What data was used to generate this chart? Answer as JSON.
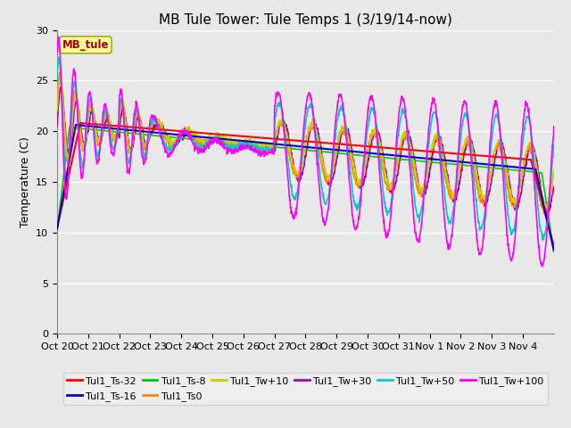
{
  "title": "MB Tule Tower: Tule Temps 1 (3/19/14-now)",
  "ylabel": "Temperature (C)",
  "ylim": [
    0,
    30
  ],
  "yticks": [
    0,
    5,
    10,
    15,
    20,
    25,
    30
  ],
  "xtick_labels": [
    "Oct 20",
    "Oct 21",
    "Oct 22",
    "Oct 23",
    "Oct 24",
    "Oct 25",
    "Oct 26",
    "Oct 27",
    "Oct 28",
    "Oct 29",
    "Oct 30",
    "Oct 31",
    "Nov 1",
    "Nov 2",
    "Nov 3",
    "Nov 4"
  ],
  "series": {
    "Tul1_Ts-32": {
      "color": "#ff0000",
      "lw": 1.5,
      "zorder": 5
    },
    "Tul1_Ts-16": {
      "color": "#0000cc",
      "lw": 1.5,
      "zorder": 5
    },
    "Tul1_Ts-8": {
      "color": "#00cc00",
      "lw": 1.2,
      "zorder": 4
    },
    "Tul1_Ts0": {
      "color": "#ff8800",
      "lw": 1.2,
      "zorder": 4
    },
    "Tul1_Tw+10": {
      "color": "#cccc00",
      "lw": 1.2,
      "zorder": 4
    },
    "Tul1_Tw+30": {
      "color": "#aa00aa",
      "lw": 1.2,
      "zorder": 3
    },
    "Tul1_Tw+50": {
      "color": "#00cccc",
      "lw": 1.2,
      "zorder": 4
    },
    "Tul1_Tw+100": {
      "color": "#ff00ff",
      "lw": 1.2,
      "zorder": 6
    }
  },
  "bg_color": "#e8e8e8",
  "plot_bg": "#e8e8e8",
  "grid_color": "#ffffff",
  "title_fontsize": 11,
  "label_fontsize": 9,
  "tick_fontsize": 8,
  "legend_fontsize": 8
}
